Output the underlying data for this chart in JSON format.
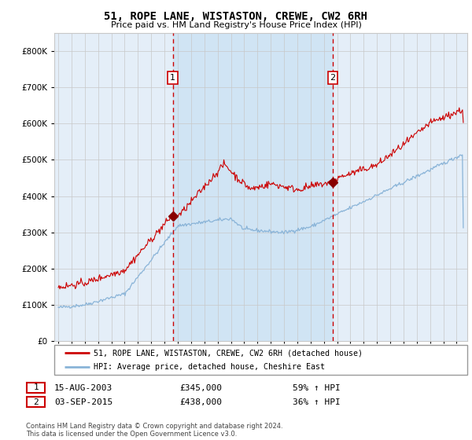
{
  "title": "51, ROPE LANE, WISTASTON, CREWE, CW2 6RH",
  "subtitle": "Price paid vs. HM Land Registry's House Price Index (HPI)",
  "background_color": "#ffffff",
  "plot_bg_color": "#e4eef8",
  "grid_color": "#c8c8c8",
  "hpi_line_color": "#8ab4d8",
  "price_line_color": "#cc0000",
  "marker_color": "#880000",
  "dashed_line_color": "#cc0000",
  "yticks": [
    0,
    100000,
    200000,
    300000,
    400000,
    500000,
    600000,
    700000,
    800000
  ],
  "ytick_labels": [
    "£0",
    "£100K",
    "£200K",
    "£300K",
    "£400K",
    "£500K",
    "£600K",
    "£700K",
    "£800K"
  ],
  "ylim": [
    0,
    850000
  ],
  "xlim_start": 1994.7,
  "xlim_end": 2025.8,
  "sale1_x": 2003.62,
  "sale1_y": 345000,
  "sale2_x": 2015.67,
  "sale2_y": 438000,
  "legend_line1": "51, ROPE LANE, WISTASTON, CREWE, CW2 6RH (detached house)",
  "legend_line2": "HPI: Average price, detached house, Cheshire East",
  "annotation1_date": "15-AUG-2003",
  "annotation1_price": "£345,000",
  "annotation1_hpi": "59% ↑ HPI",
  "annotation2_date": "03-SEP-2015",
  "annotation2_price": "£438,000",
  "annotation2_hpi": "36% ↑ HPI",
  "footer": "Contains HM Land Registry data © Crown copyright and database right 2024.\nThis data is licensed under the Open Government Licence v3.0.",
  "shaded_region_color": "#d0e4f4"
}
